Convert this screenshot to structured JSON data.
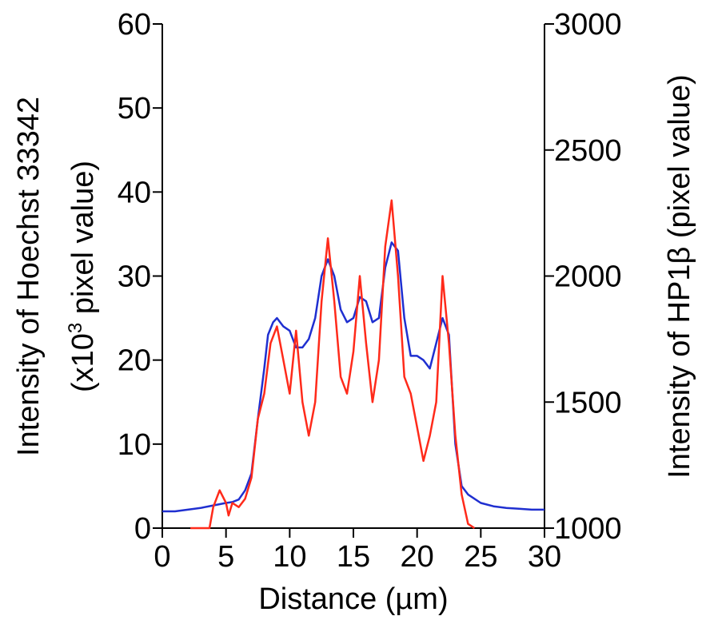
{
  "chart_data": {
    "type": "line",
    "xlabel": "Distance (µm)",
    "ylabel_left": {
      "line1": "Intensity of Hoechst 33342",
      "line2_pre": "(x10",
      "line2_sup": "3",
      "line2_post": " pixel value)"
    },
    "ylabel_right": "Intensity of HP1β (pixel value)",
    "xlim": [
      0,
      30
    ],
    "ylim_left": [
      0,
      60
    ],
    "ylim_right": [
      1000,
      3000
    ],
    "x_ticks": [
      "0",
      "5",
      "10",
      "15",
      "20",
      "25",
      "30"
    ],
    "y_left_ticks": [
      "0",
      "10",
      "20",
      "30",
      "40",
      "50",
      "60"
    ],
    "y_right_ticks": [
      "1000",
      "1500",
      "2000",
      "2500",
      "3000"
    ],
    "grid": false,
    "series": [
      {
        "axis": "left",
        "color": "#1f2fd0",
        "points": [
          [
            0,
            2.0
          ],
          [
            1,
            2.0
          ],
          [
            2,
            2.2
          ],
          [
            3,
            2.4
          ],
          [
            4,
            2.7
          ],
          [
            5,
            3.0
          ],
          [
            5.5,
            3.1
          ],
          [
            6,
            3.4
          ],
          [
            6.5,
            4.5
          ],
          [
            7,
            6.5
          ],
          [
            7.5,
            13
          ],
          [
            8,
            19
          ],
          [
            8.3,
            23
          ],
          [
            8.7,
            24.5
          ],
          [
            9,
            25
          ],
          [
            9.5,
            24
          ],
          [
            10,
            23.5
          ],
          [
            10.5,
            21.5
          ],
          [
            11,
            21.5
          ],
          [
            11.5,
            22.5
          ],
          [
            12,
            25
          ],
          [
            12.5,
            30
          ],
          [
            13,
            32
          ],
          [
            13.5,
            30
          ],
          [
            14,
            26
          ],
          [
            14.5,
            24.5
          ],
          [
            15,
            25
          ],
          [
            15.5,
            27.5
          ],
          [
            16,
            27
          ],
          [
            16.5,
            24.5
          ],
          [
            17,
            25
          ],
          [
            17.5,
            31
          ],
          [
            18,
            34
          ],
          [
            18.5,
            33
          ],
          [
            19,
            25
          ],
          [
            19.5,
            20.5
          ],
          [
            20,
            20.5
          ],
          [
            20.5,
            20
          ],
          [
            21,
            19
          ],
          [
            21.5,
            22
          ],
          [
            22,
            25
          ],
          [
            22.5,
            23
          ],
          [
            23,
            10
          ],
          [
            23.5,
            5
          ],
          [
            24,
            4
          ],
          [
            25,
            3
          ],
          [
            26,
            2.6
          ],
          [
            27,
            2.4
          ],
          [
            28,
            2.3
          ],
          [
            29,
            2.2
          ],
          [
            30,
            2.2
          ]
        ]
      },
      {
        "axis": "left",
        "color": "#ff2a1a",
        "points": [
          [
            2.2,
            0
          ],
          [
            3.7,
            0
          ],
          [
            4.0,
            2.5
          ],
          [
            4.5,
            4.5
          ],
          [
            5.0,
            3.0
          ],
          [
            5.2,
            1.5
          ],
          [
            5.5,
            3.0
          ],
          [
            6.0,
            2.5
          ],
          [
            6.5,
            3.5
          ],
          [
            7,
            6
          ],
          [
            7.5,
            13
          ],
          [
            8,
            16
          ],
          [
            8.5,
            22
          ],
          [
            9,
            24
          ],
          [
            9.5,
            20
          ],
          [
            10,
            16
          ],
          [
            10.5,
            23.5
          ],
          [
            11,
            15
          ],
          [
            11.5,
            11
          ],
          [
            12,
            15
          ],
          [
            12.5,
            27
          ],
          [
            13,
            34.5
          ],
          [
            13.5,
            27
          ],
          [
            14,
            18
          ],
          [
            14.5,
            16
          ],
          [
            15,
            21
          ],
          [
            15.5,
            30
          ],
          [
            16,
            22
          ],
          [
            16.5,
            15
          ],
          [
            17,
            20
          ],
          [
            17.5,
            33.5
          ],
          [
            18,
            39
          ],
          [
            18.5,
            30
          ],
          [
            19,
            18
          ],
          [
            19.5,
            16
          ],
          [
            20,
            12
          ],
          [
            20.5,
            8
          ],
          [
            21,
            11
          ],
          [
            21.5,
            15
          ],
          [
            22,
            30
          ],
          [
            22.5,
            22
          ],
          [
            23,
            11
          ],
          [
            23.5,
            4
          ],
          [
            24,
            0.5
          ],
          [
            24.5,
            0
          ]
        ]
      }
    ]
  }
}
